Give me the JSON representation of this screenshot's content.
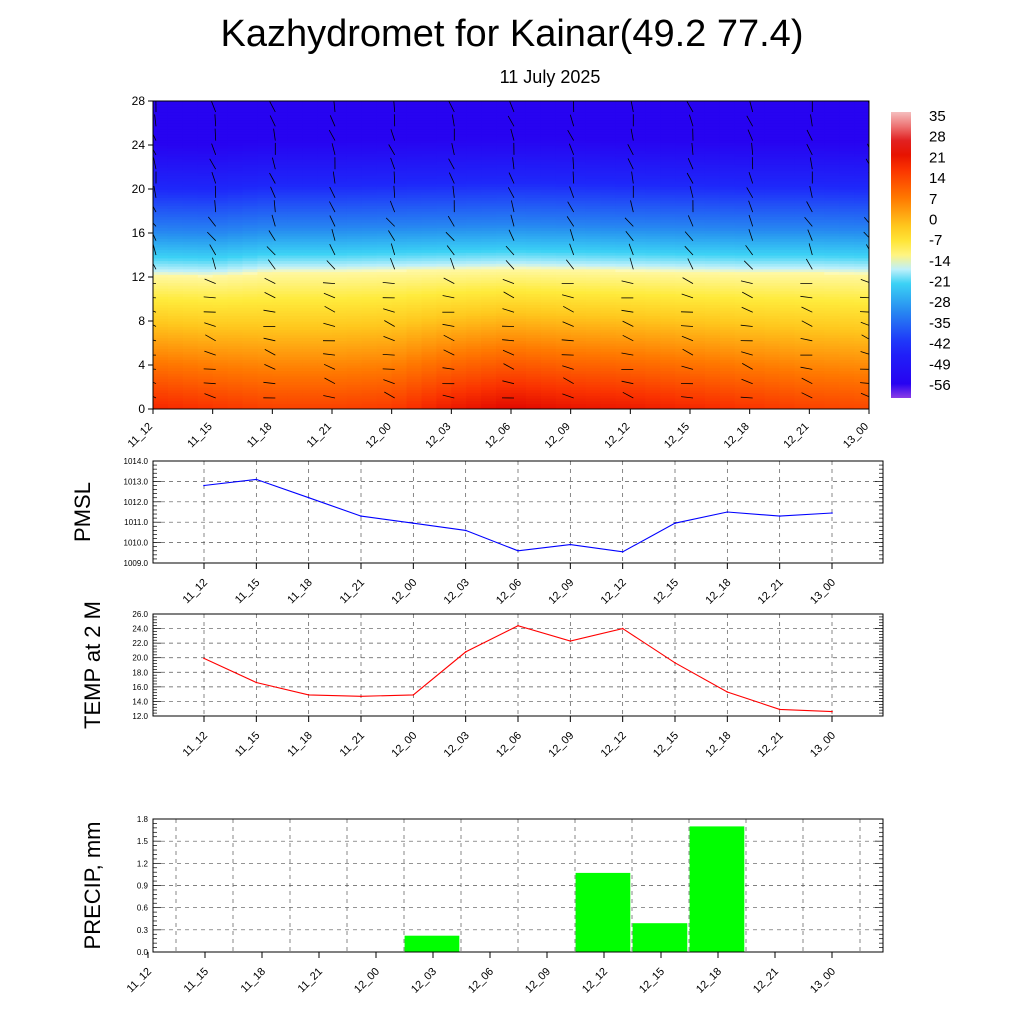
{
  "title": "Kazhydromet for Kainar(49.2 77.4)",
  "subtitle": "11 July 2025",
  "time_labels": [
    "11_12",
    "11_15",
    "11_18",
    "11_21",
    "12_00",
    "12_03",
    "12_06",
    "12_09",
    "12_12",
    "12_15",
    "12_18",
    "12_21",
    "13_00"
  ],
  "chart_data": [
    {
      "type": "heatmap",
      "title": "",
      "ylabel": "",
      "y_ticks": [
        0,
        4,
        8,
        12,
        16,
        20,
        24,
        28
      ],
      "ylim": [
        0,
        28
      ],
      "colorbar_labels": [
        "35",
        "28",
        "21",
        "14",
        "7",
        "0",
        "-7",
        "-14",
        "-21",
        "-28",
        "-35",
        "-42",
        "-49",
        "-56"
      ],
      "colorbar_range": [
        -60,
        40
      ],
      "freezing_level": [
        12.2,
        12.1,
        12.5,
        12.5,
        12.6,
        12.7,
        12.8,
        12.7,
        12.6,
        12.5,
        12.4,
        12.4,
        12.3
      ],
      "surface_temp": [
        22,
        20,
        18,
        18,
        19,
        24,
        27,
        25,
        24,
        22,
        20,
        18,
        17
      ],
      "top_temp": -55,
      "overlay": "wind barbs"
    },
    {
      "type": "line",
      "ylabel": "PMSL",
      "ylim": [
        1009.0,
        1014.0
      ],
      "y_ticks": [
        "1009.0",
        "1010.0",
        "1011.0",
        "1012.0",
        "1013.0",
        "1014.0"
      ],
      "values": [
        1012.8,
        1013.1,
        1012.2,
        1011.3,
        1010.95,
        1010.6,
        1009.6,
        1009.9,
        1009.55,
        1010.95,
        1011.5,
        1011.3,
        1011.45
      ],
      "color": "#0000ff",
      "grid": true
    },
    {
      "type": "line",
      "ylabel": "TEMP at 2 M",
      "ylim": [
        12.0,
        26.0
      ],
      "y_ticks": [
        "12.0",
        "14.0",
        "16.0",
        "18.0",
        "20.0",
        "22.0",
        "24.0",
        "26.0"
      ],
      "values": [
        19.9,
        16.6,
        14.9,
        14.7,
        14.9,
        20.8,
        24.4,
        22.3,
        24.0,
        19.3,
        15.3,
        12.9,
        12.6
      ],
      "color": "#ff0000",
      "grid": true
    },
    {
      "type": "bar",
      "ylabel": "PRECIP, mm",
      "ylim": [
        0,
        1.8
      ],
      "y_ticks": [
        "0.0",
        "0.3",
        "0.6",
        "0.9",
        "1.2",
        "1.5",
        "1.8"
      ],
      "categories": [
        "11_12",
        "11_15",
        "11_18",
        "11_21",
        "12_00",
        "12_03",
        "12_06",
        "12_09",
        "12_12",
        "12_15",
        "12_18",
        "12_21",
        "13_00"
      ],
      "values": [
        0,
        0,
        0,
        0,
        0.22,
        0,
        0,
        1.07,
        0.39,
        1.7,
        0,
        0,
        0
      ],
      "color": "#00ff00",
      "grid": true
    }
  ]
}
